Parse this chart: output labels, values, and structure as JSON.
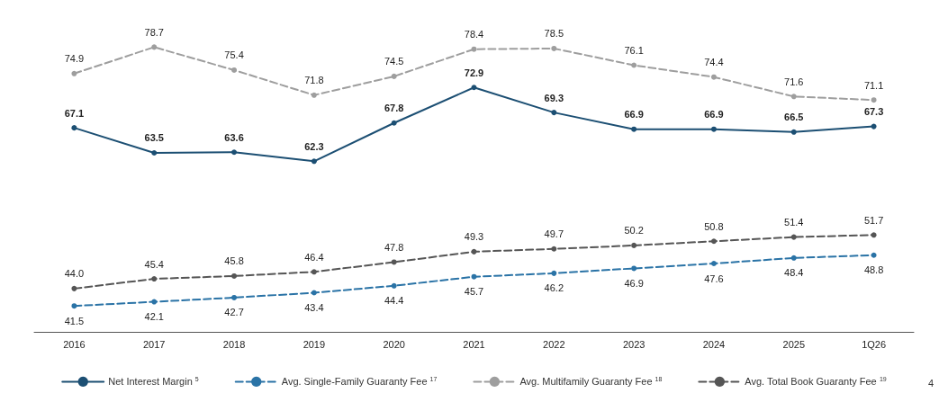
{
  "chart_data": {
    "type": "line",
    "categories": [
      "2016",
      "2017",
      "2018",
      "2019",
      "2020",
      "2021",
      "2022",
      "2023",
      "2024",
      "2025",
      "1Q26"
    ],
    "series": [
      {
        "name": "Net Interest Margin $^{5}$",
        "color": "#1c4f73",
        "line_style": "solid",
        "values": [
          67.1,
          63.5,
          63.6,
          62.3,
          67.8,
          72.9,
          69.3,
          66.9,
          66.9,
          66.5,
          67.3
        ],
        "value_labels": [
          "67.1",
          "63.5",
          "63.6",
          "62.3",
          "67.8",
          "72.9",
          "69.3",
          "66.9",
          "66.9",
          "66.5",
          "67.3"
        ]
      },
      {
        "name": "Avg. Single-Family Guaranty Fee $^{17}$",
        "color": "#2a73a6",
        "line_style": "dashed",
        "values": [
          41.5,
          42.1,
          42.7,
          43.4,
          44.4,
          45.7,
          46.2,
          46.9,
          47.6,
          48.4,
          48.8
        ],
        "value_labels": [
          "41.5",
          "42.1",
          "42.7",
          "43.4",
          "44.4",
          "45.7",
          "46.2",
          "46.9",
          "47.6",
          "48.4",
          "48.8"
        ]
      },
      {
        "name": "Avg. Multifamily Guaranty Fee $^{18}$",
        "color": "#9e9e9e",
        "line_style": "dashed",
        "values": [
          74.9,
          78.7,
          75.4,
          71.8,
          74.5,
          78.4,
          78.5,
          76.1,
          74.4,
          71.6,
          71.1
        ],
        "value_labels": [
          "74.9",
          "78.7",
          "75.4",
          "71.8",
          "74.5",
          "78.4",
          "78.5",
          "76.1",
          "74.4",
          "71.6",
          "71.1"
        ]
      },
      {
        "name": "Avg. Total Book Guaranty Fee $^{19}$",
        "color": "#555555",
        "line_style": "dashed",
        "values": [
          44.0,
          45.4,
          45.8,
          46.4,
          47.8,
          49.3,
          49.7,
          50.2,
          50.8,
          51.4,
          51.7
        ],
        "value_labels": [
          "44.0",
          "45.4",
          "45.8",
          "46.4",
          "47.8",
          "49.3",
          "49.7",
          "50.2",
          "50.8",
          "51.4",
          "51.7"
        ]
      }
    ],
    "marker": "circle",
    "grid": false,
    "legend": "bottom",
    "tick_labels": "x",
    "annotations": [
      "4"
    ]
  }
}
